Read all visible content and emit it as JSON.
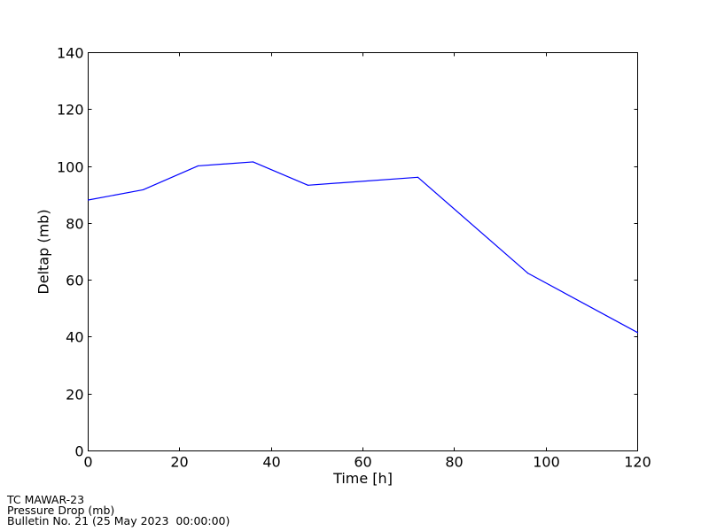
{
  "chart_data": {
    "type": "line",
    "xlabel": "Time [h]",
    "ylabel": "Deltap (mb)",
    "xlim": [
      0,
      120
    ],
    "ylim": [
      0,
      140
    ],
    "xticks": [
      0,
      20,
      40,
      60,
      80,
      100,
      120
    ],
    "yticks": [
      0,
      20,
      40,
      60,
      80,
      100,
      120,
      140
    ],
    "grid": false,
    "series": [
      {
        "color": "#0000ff",
        "x": [
          0,
          12,
          24,
          36,
          48,
          72,
          96,
          120
        ],
        "y": [
          88.2,
          91.8,
          100.2,
          101.6,
          93.4,
          96.2,
          62.5,
          41.6
        ]
      }
    ]
  },
  "footer": {
    "line1": "TC MAWAR-23",
    "line2": "Pressure Drop (mb)",
    "line3": "Bulletin No. 21 (25 May 2023  00:00:00)"
  }
}
